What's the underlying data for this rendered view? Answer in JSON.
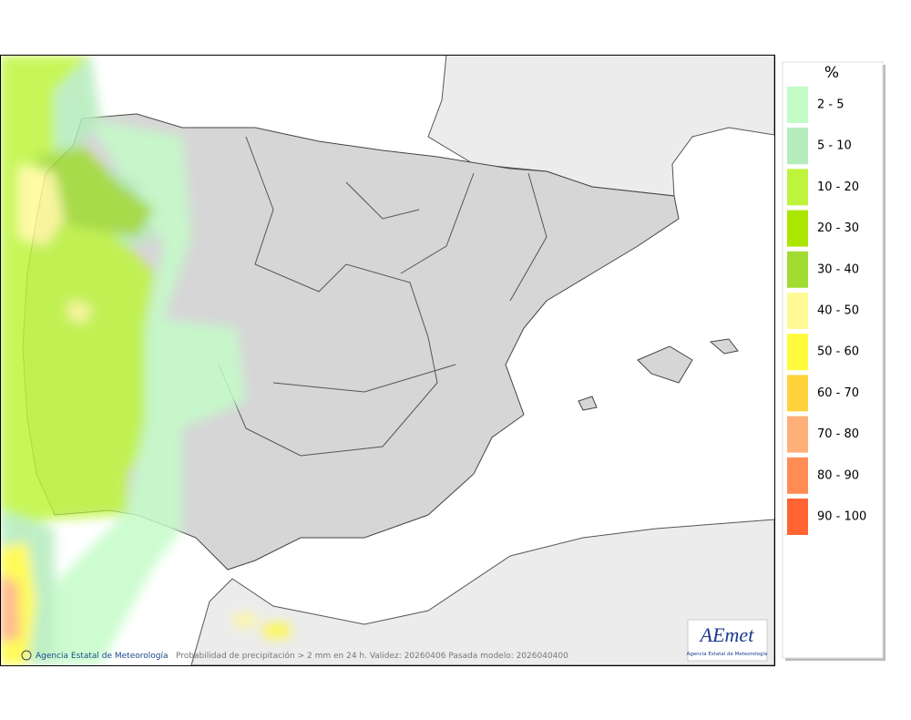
{
  "map": {
    "credit": "Agencia Estatal de Meteorología",
    "caption": "Probabilidad de precipitación > 2 mm en 24 h. Validez: 20260406 Pasada modelo: 2026040400"
  },
  "legend": {
    "unit": "%",
    "items": [
      {
        "label": "2 - 5",
        "color": "#c4fcc8"
      },
      {
        "label": "5 - 10",
        "color": "#b4ecbc"
      },
      {
        "label": "10 - 20",
        "color": "#bef53c"
      },
      {
        "label": "20 - 30",
        "color": "#aae600"
      },
      {
        "label": "30 - 40",
        "color": "#a0dc32"
      },
      {
        "label": "40 - 50",
        "color": "#fffa96"
      },
      {
        "label": "50 - 60",
        "color": "#fffa3c"
      },
      {
        "label": "60 - 70",
        "color": "#ffd23c"
      },
      {
        "label": "70 - 80",
        "color": "#ffaf78"
      },
      {
        "label": "80 - 90",
        "color": "#ff8c55"
      },
      {
        "label": "90 - 100",
        "color": "#ff6432"
      }
    ]
  },
  "logo": {
    "name": "AEmet",
    "subtitle": "Agencia Estatal de Meteorología"
  }
}
